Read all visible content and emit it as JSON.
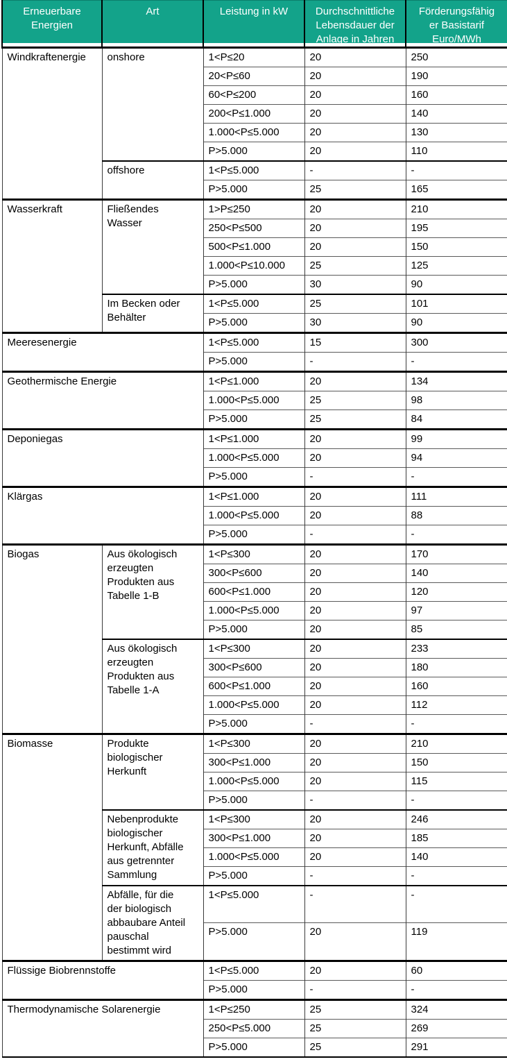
{
  "colors": {
    "header_bg": "#13A38A",
    "header_text": "#FFFFFF",
    "section_border": "#000000"
  },
  "table": {
    "headers": [
      "Erneuerbare\nEnergien",
      "Art",
      "Leistung in kW",
      "Durchschnittliche\nLebensdauer der\nAnlage in Jahren",
      "Förderungsfähig\ner Basistarif\nEuro/MWh"
    ],
    "sections": [
      {
        "energy": "Windkraftenergie",
        "merged": false,
        "groups": [
          {
            "art": "onshore",
            "rows": [
              {
                "kw": "1<P≤20",
                "years": "20",
                "tariff": "250"
              },
              {
                "kw": "20<P≤60",
                "years": "20",
                "tariff": "190"
              },
              {
                "kw": "60<P≤200",
                "years": "20",
                "tariff": "160"
              },
              {
                "kw": "200<P≤1.000",
                "years": "20",
                "tariff": "140"
              },
              {
                "kw": "1.000<P≤5.000",
                "years": "20",
                "tariff": "130"
              },
              {
                "kw": "P>5.000",
                "years": "20",
                "tariff": "110"
              }
            ]
          },
          {
            "art": "offshore",
            "rows": [
              {
                "kw": "1<P≤5.000",
                "years": "-",
                "tariff": "-"
              },
              {
                "kw": "P>5.000",
                "years": "25",
                "tariff": "165"
              }
            ]
          }
        ]
      },
      {
        "energy": "Wasserkraft",
        "merged": false,
        "groups": [
          {
            "art": "Fließendes\nWasser",
            "rows": [
              {
                "kw": "1>P≤250",
                "years": "20",
                "tariff": "210"
              },
              {
                "kw": "250<P≤500",
                "years": "20",
                "tariff": "195"
              },
              {
                "kw": "500<P≤1.000",
                "years": "20",
                "tariff": "150"
              },
              {
                "kw": "1.000<P≤10.000",
                "years": "25",
                "tariff": "125"
              },
              {
                "kw": "P>5.000",
                "years": "30",
                "tariff": "90"
              }
            ]
          },
          {
            "art": "Im Becken oder\nBehälter",
            "rows": [
              {
                "kw": "1<P≤5.000",
                "years": "25",
                "tariff": "101"
              },
              {
                "kw": "P>5.000",
                "years": "30",
                "tariff": "90"
              }
            ]
          }
        ]
      },
      {
        "energy": "Meeresenergie",
        "merged": true,
        "groups": [
          {
            "art": null,
            "rows": [
              {
                "kw": "1<P≤5.000",
                "years": "15",
                "tariff": "300"
              },
              {
                "kw": "P>5.000",
                "years": "-",
                "tariff": "-"
              }
            ]
          }
        ]
      },
      {
        "energy": "Geothermische Energie",
        "merged": true,
        "groups": [
          {
            "art": null,
            "rows": [
              {
                "kw": "1<P≤1.000",
                "years": "20",
                "tariff": "134"
              },
              {
                "kw": "1.000<P≤5.000",
                "years": "25",
                "tariff": "98"
              },
              {
                "kw": "P>5.000",
                "years": "25",
                "tariff": "84"
              }
            ]
          }
        ]
      },
      {
        "energy": "Deponiegas",
        "merged": true,
        "groups": [
          {
            "art": null,
            "rows": [
              {
                "kw": "1<P≤1.000",
                "years": "20",
                "tariff": "99"
              },
              {
                "kw": "1.000<P≤5.000",
                "years": "20",
                "tariff": "94"
              },
              {
                "kw": "P>5.000",
                "years": "-",
                "tariff": "-"
              }
            ]
          }
        ]
      },
      {
        "energy": "Klärgas",
        "merged": true,
        "groups": [
          {
            "art": null,
            "rows": [
              {
                "kw": "1<P≤1.000",
                "years": "20",
                "tariff": "111"
              },
              {
                "kw": "1.000<P≤5.000",
                "years": "20",
                "tariff": "88"
              },
              {
                "kw": "P>5.000",
                "years": "-",
                "tariff": "-"
              }
            ]
          }
        ]
      },
      {
        "energy": "Biogas",
        "merged": false,
        "groups": [
          {
            "art": "Aus ökologisch\nerzeugten\nProdukten aus\nTabelle 1-B",
            "rows": [
              {
                "kw": "1<P≤300",
                "years": "20",
                "tariff": "170"
              },
              {
                "kw": "300<P≤600",
                "years": "20",
                "tariff": "140"
              },
              {
                "kw": "600<P≤1.000",
                "years": "20",
                "tariff": "120"
              },
              {
                "kw": "1.000<P≤5.000",
                "years": "20",
                "tariff": "97"
              },
              {
                "kw": "P>5.000",
                "years": "20",
                "tariff": "85"
              }
            ]
          },
          {
            "art": "Aus ökologisch\nerzeugten\nProdukten aus\nTabelle 1-A",
            "rows": [
              {
                "kw": "1<P≤300",
                "years": "20",
                "tariff": "233"
              },
              {
                "kw": "300<P≤600",
                "years": "20",
                "tariff": "180"
              },
              {
                "kw": "600<P≤1.000",
                "years": "20",
                "tariff": "160"
              },
              {
                "kw": "1.000<P≤5.000",
                "years": "20",
                "tariff": "112"
              },
              {
                "kw": "P>5.000",
                "years": "-",
                "tariff": "-"
              }
            ]
          }
        ]
      },
      {
        "energy": "Biomasse",
        "merged": false,
        "groups": [
          {
            "art": "Produkte\nbiologischer\nHerkunft",
            "rows": [
              {
                "kw": "1<P≤300",
                "years": "20",
                "tariff": "210"
              },
              {
                "kw": "300<P≤1.000",
                "years": "20",
                "tariff": "150"
              },
              {
                "kw": "1.000<P≤5.000",
                "years": "20",
                "tariff": "115"
              },
              {
                "kw": "P>5.000",
                "years": "-",
                "tariff": "-"
              }
            ]
          },
          {
            "art": "Nebenprodukte\nbiologischer\nHerkunft, Abfälle\naus getrennter\nSammlung",
            "rows": [
              {
                "kw": "1<P≤300",
                "years": "20",
                "tariff": "246"
              },
              {
                "kw": "300<P≤1.000",
                "years": "20",
                "tariff": "185"
              },
              {
                "kw": "1.000<P≤5.000",
                "years": "20",
                "tariff": "140"
              },
              {
                "kw": "P>5.000",
                "years": "-",
                "tariff": "-"
              }
            ]
          },
          {
            "art": "Abfälle, für die\nder biologisch\nabbaubare Anteil\npauschal\nbestimmt wird",
            "rows": [
              {
                "kw": "1<P≤5.000",
                "years": "-",
                "tariff": "-"
              },
              {
                "kw": "P>5.000",
                "years": "20",
                "tariff": "119"
              }
            ]
          }
        ]
      },
      {
        "energy": "Flüssige Biobrennstoffe",
        "merged": true,
        "groups": [
          {
            "art": null,
            "rows": [
              {
                "kw": "1<P≤5.000",
                "years": "20",
                "tariff": "60"
              },
              {
                "kw": "P>5.000",
                "years": "-",
                "tariff": "-"
              }
            ]
          }
        ]
      },
      {
        "energy": "Thermodynamische Solarenergie",
        "merged": true,
        "groups": [
          {
            "art": null,
            "rows": [
              {
                "kw": "1<P≤250",
                "years": "25",
                "tariff": "324"
              },
              {
                "kw": "250<P≤5.000",
                "years": "25",
                "tariff": "269"
              },
              {
                "kw": "P>5.000",
                "years": "25",
                "tariff": "291"
              }
            ]
          }
        ]
      }
    ]
  }
}
